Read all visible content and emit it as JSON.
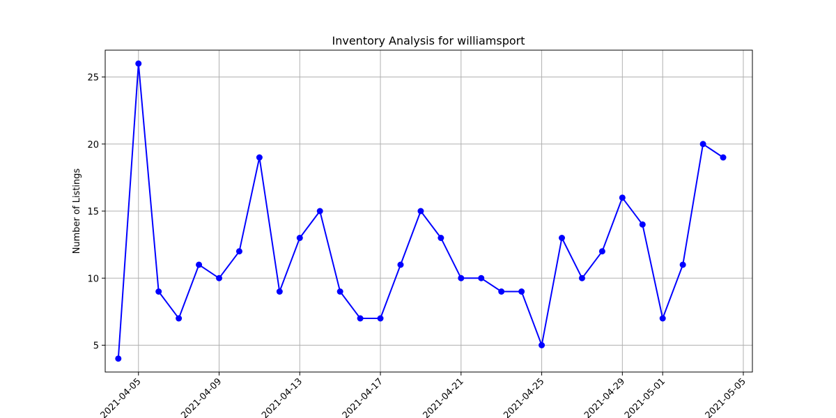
{
  "chart_data": {
    "type": "line",
    "title": "Inventory Analysis for williamsport",
    "xlabel": "",
    "ylabel": "Number of Listings",
    "grid": true,
    "color": "#0000ff",
    "marker": "circle",
    "ylim": [
      3,
      27
    ],
    "xlim": [
      "2021-04-03",
      "2021-05-06"
    ],
    "yticks": [
      5,
      10,
      15,
      20,
      25
    ],
    "xticks": [
      "2021-04-05",
      "2021-04-09",
      "2021-04-13",
      "2021-04-17",
      "2021-04-21",
      "2021-04-25",
      "2021-04-29",
      "2021-05-01",
      "2021-05-05"
    ],
    "x": [
      "2021-04-04",
      "2021-04-05",
      "2021-04-06",
      "2021-04-07",
      "2021-04-08",
      "2021-04-09",
      "2021-04-10",
      "2021-04-11",
      "2021-04-12",
      "2021-04-13",
      "2021-04-14",
      "2021-04-15",
      "2021-04-16",
      "2021-04-17",
      "2021-04-18",
      "2021-04-19",
      "2021-04-20",
      "2021-04-21",
      "2021-04-22",
      "2021-04-23",
      "2021-04-24",
      "2021-04-25",
      "2021-04-26",
      "2021-04-27",
      "2021-04-28",
      "2021-04-29",
      "2021-04-30",
      "2021-05-01",
      "2021-05-02",
      "2021-05-03",
      "2021-05-04"
    ],
    "y": [
      4,
      26,
      9,
      7,
      11,
      10,
      12,
      19,
      9,
      13,
      15,
      9,
      7,
      7,
      11,
      15,
      13,
      10,
      10,
      9,
      9,
      5,
      13,
      10,
      12,
      16,
      14,
      7,
      11,
      20,
      19
    ]
  }
}
